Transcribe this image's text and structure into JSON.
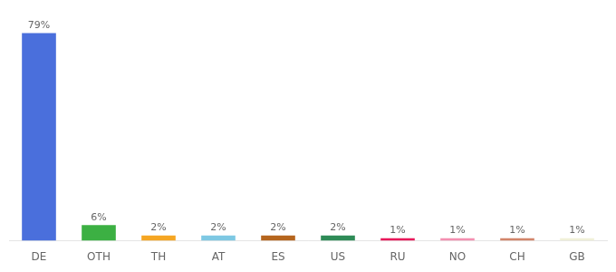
{
  "chart_data": {
    "type": "bar",
    "categories": [
      "DE",
      "OTH",
      "TH",
      "AT",
      "ES",
      "US",
      "RU",
      "NO",
      "CH",
      "GB"
    ],
    "values": [
      79,
      6,
      2,
      2,
      2,
      2,
      1,
      1,
      1,
      1
    ],
    "value_labels": [
      "79%",
      "6%",
      "2%",
      "2%",
      "2%",
      "2%",
      "1%",
      "1%",
      "1%",
      "1%"
    ],
    "colors": [
      "#4a6fdc",
      "#3cb043",
      "#f5a623",
      "#7ec8e3",
      "#b5651d",
      "#2e8b57",
      "#e8185a",
      "#f48fb1",
      "#d2856a",
      "#f0f0d8"
    ],
    "ylim": [
      0,
      84
    ],
    "data_labels": true,
    "tick_labels": "x",
    "grid": false
  }
}
